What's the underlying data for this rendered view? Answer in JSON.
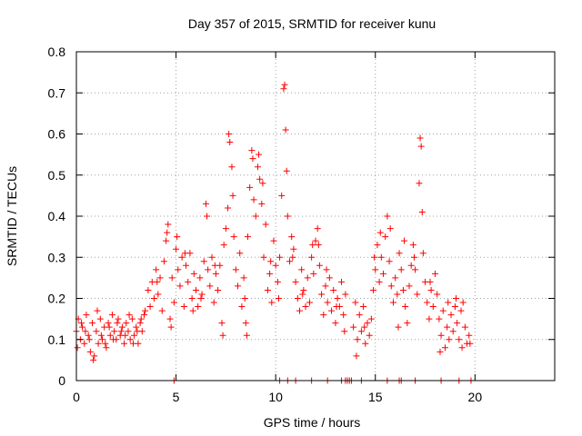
{
  "chart_data": {
    "type": "scatter",
    "title": "Day 357 of 2015, SRMTID for receiver kunu",
    "xlabel": "GPS time / hours",
    "ylabel": "SRMTID / TECUs",
    "xlim": [
      0,
      24
    ],
    "ylim": [
      0,
      0.8
    ],
    "xticks": [
      0,
      5,
      10,
      15,
      20
    ],
    "xtick_labels": [
      "0",
      "5",
      "10",
      "15",
      "20"
    ],
    "yticks": [
      0,
      0.1,
      0.2,
      0.3,
      0.4,
      0.5,
      0.6,
      0.7,
      0.8
    ],
    "ytick_labels": [
      "0",
      "0.1",
      "0.2",
      "0.3",
      "0.4",
      "0.5",
      "0.6",
      "0.7",
      "0.8"
    ],
    "grid": true,
    "marker": "plus",
    "color": "#ff0000",
    "series": [
      {
        "name": "SRMTID",
        "points": [
          [
            0.0,
            0.12
          ],
          [
            0.1,
            0.15
          ],
          [
            0.2,
            0.1
          ],
          [
            0.3,
            0.13
          ],
          [
            0.4,
            0.09
          ],
          [
            0.5,
            0.16
          ],
          [
            0.6,
            0.11
          ],
          [
            0.7,
            0.07
          ],
          [
            0.8,
            0.14
          ],
          [
            0.9,
            0.06
          ],
          [
            1.0,
            0.12
          ],
          [
            1.1,
            0.09
          ],
          [
            1.2,
            0.15
          ],
          [
            1.3,
            0.1
          ],
          [
            1.4,
            0.13
          ],
          [
            1.5,
            0.08
          ],
          [
            1.6,
            0.14
          ],
          [
            1.7,
            0.11
          ],
          [
            1.8,
            0.16
          ],
          [
            1.9,
            0.12
          ],
          [
            2.0,
            0.1
          ],
          [
            2.1,
            0.15
          ],
          [
            2.2,
            0.11
          ],
          [
            2.3,
            0.13
          ],
          [
            2.4,
            0.09
          ],
          [
            2.5,
            0.14
          ],
          [
            2.6,
            0.12
          ],
          [
            2.7,
            0.1
          ],
          [
            2.8,
            0.15
          ],
          [
            2.9,
            0.11
          ],
          [
            3.0,
            0.13
          ],
          [
            3.1,
            0.09
          ],
          [
            3.2,
            0.14
          ],
          [
            3.3,
            0.12
          ],
          [
            3.4,
            0.16
          ],
          [
            0.05,
            0.08
          ],
          [
            0.25,
            0.14
          ],
          [
            0.45,
            0.12
          ],
          [
            0.65,
            0.1
          ],
          [
            0.85,
            0.05
          ],
          [
            1.05,
            0.17
          ],
          [
            1.25,
            0.11
          ],
          [
            1.45,
            0.09
          ],
          [
            1.65,
            0.13
          ],
          [
            1.85,
            0.1
          ],
          [
            2.05,
            0.14
          ],
          [
            2.25,
            0.12
          ],
          [
            2.45,
            0.11
          ],
          [
            2.65,
            0.16
          ],
          [
            2.85,
            0.09
          ],
          [
            3.05,
            0.12
          ],
          [
            3.25,
            0.15
          ],
          [
            3.45,
            0.17
          ],
          [
            3.6,
            0.22
          ],
          [
            3.7,
            0.18
          ],
          [
            3.8,
            0.24
          ],
          [
            3.9,
            0.2
          ],
          [
            4.0,
            0.27
          ],
          [
            4.1,
            0.21
          ],
          [
            4.2,
            0.25
          ],
          [
            4.3,
            0.17
          ],
          [
            4.4,
            0.29
          ],
          [
            4.5,
            0.34
          ],
          [
            4.6,
            0.38
          ],
          [
            4.7,
            0.15
          ],
          [
            4.8,
            0.25
          ],
          [
            4.9,
            0.19
          ],
          [
            5.0,
            0.32
          ],
          [
            5.1,
            0.27
          ],
          [
            5.2,
            0.23
          ],
          [
            5.3,
            0.3
          ],
          [
            5.4,
            0.18
          ],
          [
            5.5,
            0.28
          ],
          [
            5.6,
            0.24
          ],
          [
            5.7,
            0.31
          ],
          [
            5.8,
            0.2
          ],
          [
            5.9,
            0.26
          ],
          [
            6.0,
            0.22
          ],
          [
            6.1,
            0.18
          ],
          [
            6.2,
            0.25
          ],
          [
            6.3,
            0.21
          ],
          [
            6.4,
            0.29
          ],
          [
            6.5,
            0.43
          ],
          [
            6.6,
            0.27
          ],
          [
            6.7,
            0.23
          ],
          [
            6.8,
            0.3
          ],
          [
            6.9,
            0.19
          ],
          [
            7.0,
            0.26
          ],
          [
            7.1,
            0.22
          ],
          [
            7.2,
            0.28
          ],
          [
            7.3,
            0.14
          ],
          [
            7.4,
            0.33
          ],
          [
            7.5,
            0.37
          ],
          [
            7.6,
            0.42
          ],
          [
            7.7,
            0.58
          ],
          [
            7.8,
            0.52
          ],
          [
            7.9,
            0.35
          ],
          [
            8.0,
            0.27
          ],
          [
            8.1,
            0.23
          ],
          [
            8.2,
            0.31
          ],
          [
            8.3,
            0.18
          ],
          [
            8.4,
            0.25
          ],
          [
            8.5,
            0.14
          ],
          [
            8.6,
            0.35
          ],
          [
            8.7,
            0.47
          ],
          [
            8.8,
            0.56
          ],
          [
            8.9,
            0.44
          ],
          [
            9.0,
            0.4
          ],
          [
            9.1,
            0.52
          ],
          [
            9.2,
            0.49
          ],
          [
            9.3,
            0.43
          ],
          [
            9.4,
            0.3
          ],
          [
            9.5,
            0.38
          ],
          [
            9.6,
            0.22
          ],
          [
            9.7,
            0.26
          ],
          [
            9.8,
            0.19
          ],
          [
            9.9,
            0.34
          ],
          [
            10.0,
            0.28
          ],
          [
            10.1,
            0.24
          ],
          [
            10.2,
            0.3
          ],
          [
            10.3,
            0.45
          ],
          [
            10.4,
            0.71
          ],
          [
            10.5,
            0.61
          ],
          [
            10.6,
            0.4
          ],
          [
            10.7,
            0.29
          ],
          [
            10.8,
            0.35
          ],
          [
            10.9,
            0.32
          ],
          [
            11.0,
            0.24
          ],
          [
            11.1,
            0.2
          ],
          [
            11.2,
            0.17
          ],
          [
            11.3,
            0.27
          ],
          [
            11.4,
            0.22
          ],
          [
            11.5,
            0.18
          ],
          [
            11.6,
            0.25
          ],
          [
            11.7,
            0.19
          ],
          [
            11.8,
            0.3
          ],
          [
            11.9,
            0.26
          ],
          [
            12.0,
            0.34
          ],
          [
            12.1,
            0.37
          ],
          [
            12.2,
            0.28
          ],
          [
            12.3,
            0.21
          ],
          [
            12.4,
            0.16
          ],
          [
            12.5,
            0.23
          ],
          [
            12.6,
            0.19
          ],
          [
            12.7,
            0.25
          ],
          [
            12.8,
            0.17
          ],
          [
            12.9,
            0.22
          ],
          [
            13.0,
            0.14
          ],
          [
            13.1,
            0.2
          ],
          [
            13.2,
            0.18
          ],
          [
            13.3,
            0.24
          ],
          [
            13.4,
            0.16
          ],
          [
            13.5,
            0.21
          ],
          [
            13.9,
            0.13
          ],
          [
            14.0,
            0.19
          ],
          [
            14.1,
            0.1
          ],
          [
            14.2,
            0.16
          ],
          [
            14.3,
            0.12
          ],
          [
            14.4,
            0.18
          ],
          [
            14.5,
            0.09
          ],
          [
            14.6,
            0.14
          ],
          [
            14.7,
            0.11
          ],
          [
            14.8,
            0.15
          ],
          [
            14.9,
            0.22
          ],
          [
            15.0,
            0.27
          ],
          [
            15.1,
            0.33
          ],
          [
            15.2,
            0.24
          ],
          [
            15.3,
            0.3
          ],
          [
            15.4,
            0.26
          ],
          [
            15.5,
            0.35
          ],
          [
            15.6,
            0.4
          ],
          [
            15.7,
            0.29
          ],
          [
            15.8,
            0.23
          ],
          [
            15.9,
            0.19
          ],
          [
            16.0,
            0.25
          ],
          [
            16.1,
            0.21
          ],
          [
            16.2,
            0.31
          ],
          [
            16.3,
            0.27
          ],
          [
            16.4,
            0.22
          ],
          [
            16.5,
            0.18
          ],
          [
            16.6,
            0.14
          ],
          [
            16.7,
            0.23
          ],
          [
            16.8,
            0.28
          ],
          [
            16.9,
            0.33
          ],
          [
            17.0,
            0.27
          ],
          [
            17.1,
            0.21
          ],
          [
            17.2,
            0.48
          ],
          [
            17.3,
            0.57
          ],
          [
            17.4,
            0.31
          ],
          [
            17.5,
            0.24
          ],
          [
            17.6,
            0.19
          ],
          [
            17.7,
            0.15
          ],
          [
            17.8,
            0.22
          ],
          [
            17.9,
            0.18
          ],
          [
            18.0,
            0.26
          ],
          [
            18.1,
            0.21
          ],
          [
            18.2,
            0.15
          ],
          [
            18.3,
            0.11
          ],
          [
            18.4,
            0.17
          ],
          [
            18.5,
            0.08
          ],
          [
            18.6,
            0.13
          ],
          [
            18.7,
            0.1
          ],
          [
            18.8,
            0.16
          ],
          [
            18.9,
            0.12
          ],
          [
            19.0,
            0.18
          ],
          [
            19.1,
            0.14
          ],
          [
            19.2,
            0.1
          ],
          [
            19.3,
            0.17
          ],
          [
            19.4,
            0.19
          ],
          [
            19.5,
            0.13
          ],
          [
            19.6,
            0.09
          ],
          [
            19.7,
            0.11
          ],
          [
            4.05,
            0.24
          ],
          [
            4.55,
            0.36
          ],
          [
            4.75,
            0.13
          ],
          [
            5.05,
            0.35
          ],
          [
            5.45,
            0.31
          ],
          [
            5.85,
            0.17
          ],
          [
            6.25,
            0.2
          ],
          [
            6.55,
            0.4
          ],
          [
            6.95,
            0.28
          ],
          [
            7.35,
            0.11
          ],
          [
            7.65,
            0.6
          ],
          [
            7.85,
            0.45
          ],
          [
            8.45,
            0.2
          ],
          [
            8.55,
            0.11
          ],
          [
            8.85,
            0.54
          ],
          [
            9.15,
            0.55
          ],
          [
            9.35,
            0.48
          ],
          [
            9.75,
            0.29
          ],
          [
            10.15,
            0.2
          ],
          [
            10.45,
            0.72
          ],
          [
            10.55,
            0.51
          ],
          [
            10.85,
            0.3
          ],
          [
            11.35,
            0.21
          ],
          [
            11.85,
            0.33
          ],
          [
            12.15,
            0.33
          ],
          [
            12.55,
            0.27
          ],
          [
            13.05,
            0.18
          ],
          [
            13.45,
            0.12
          ],
          [
            14.05,
            0.06
          ],
          [
            14.45,
            0.13
          ],
          [
            14.95,
            0.3
          ],
          [
            15.25,
            0.36
          ],
          [
            15.75,
            0.37
          ],
          [
            16.15,
            0.13
          ],
          [
            16.45,
            0.34
          ],
          [
            16.95,
            0.3
          ],
          [
            17.25,
            0.59
          ],
          [
            17.35,
            0.41
          ],
          [
            17.75,
            0.24
          ],
          [
            18.25,
            0.07
          ],
          [
            18.65,
            0.19
          ],
          [
            19.05,
            0.2
          ],
          [
            19.35,
            0.08
          ],
          [
            19.75,
            0.09
          ],
          [
            4.9,
            0.0
          ],
          [
            10.2,
            0.0
          ],
          [
            10.6,
            0.0
          ],
          [
            11.0,
            0.0
          ],
          [
            11.8,
            0.0
          ],
          [
            12.6,
            0.0
          ],
          [
            13.3,
            0.0
          ],
          [
            13.5,
            0.0
          ],
          [
            13.6,
            0.0
          ],
          [
            13.7,
            0.0
          ],
          [
            13.8,
            0.0
          ],
          [
            14.3,
            0.0
          ],
          [
            15.6,
            0.0
          ],
          [
            16.2,
            0.0
          ],
          [
            16.3,
            0.0
          ],
          [
            17.0,
            0.0
          ],
          [
            18.3,
            0.0
          ],
          [
            19.2,
            0.0
          ],
          [
            19.8,
            0.0
          ]
        ]
      }
    ]
  }
}
